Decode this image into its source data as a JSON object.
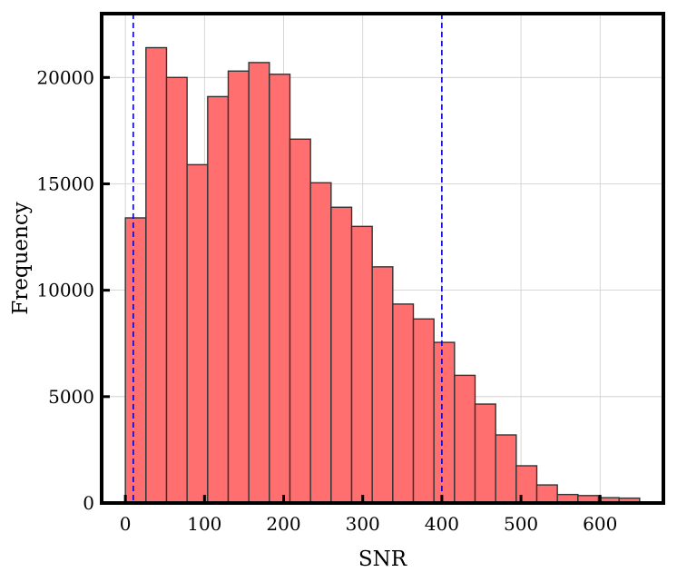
{
  "chart_data": {
    "type": "bar",
    "subtype": "histogram",
    "xlabel": "SNR",
    "ylabel": "Frequency",
    "xlim": [
      -30,
      680
    ],
    "ylim": [
      0,
      23000
    ],
    "xticks": [
      0,
      100,
      200,
      300,
      400,
      500,
      600
    ],
    "yticks": [
      0,
      5000,
      10000,
      15000,
      20000
    ],
    "grid": true,
    "bar_color": "#ff6f6f",
    "bar_edge_color": "#333333",
    "bin_width": 26,
    "bin_start": 0,
    "counts": [
      13400,
      21400,
      20000,
      15900,
      19100,
      20300,
      20700,
      20150,
      17100,
      15050,
      13900,
      13000,
      11100,
      9350,
      8650,
      7550,
      6000,
      4650,
      3200,
      1750,
      850,
      400,
      350,
      250,
      230
    ],
    "vlines": [
      {
        "x": 10,
        "color": "#0000dd",
        "style": "dashed"
      },
      {
        "x": 400,
        "color": "#0000dd",
        "style": "dashed"
      }
    ]
  }
}
